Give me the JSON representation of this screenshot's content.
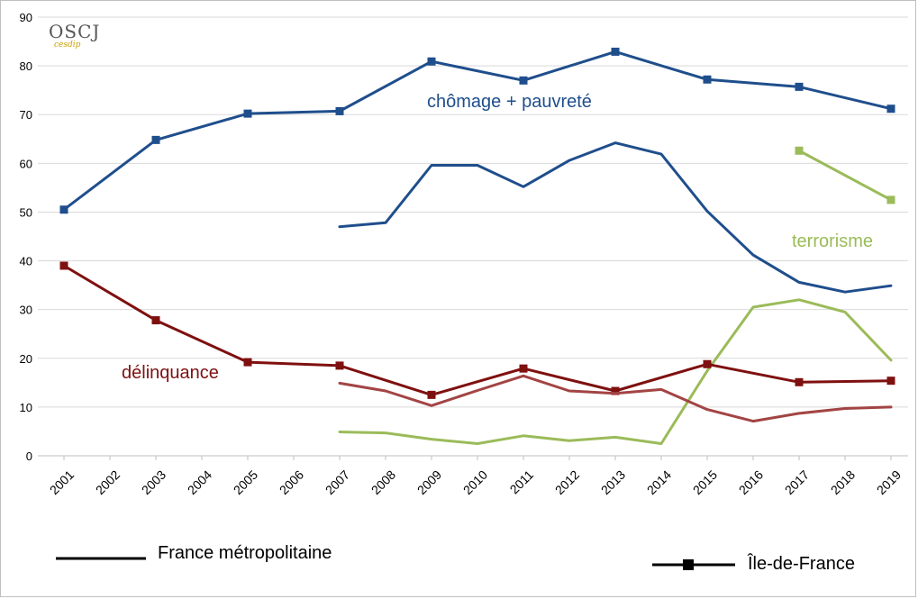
{
  "logo": {
    "main": "OSCJ",
    "sub": "cesdip"
  },
  "chart_data": {
    "type": "line",
    "x": [
      "2001",
      "2002",
      "2003",
      "2004",
      "2005",
      "2006",
      "2007",
      "2008",
      "2009",
      "2010",
      "2011",
      "2012",
      "2013",
      "2014",
      "2015",
      "2016",
      "2017",
      "2018",
      "2019"
    ],
    "ylim": [
      0,
      90
    ],
    "yticks": [
      0,
      10,
      20,
      30,
      40,
      50,
      60,
      70,
      80,
      90
    ],
    "grid": true,
    "series": [
      {
        "name": "chômage + pauvreté",
        "region": "Île-de-France",
        "color": "#1f4e8c",
        "markers": true,
        "values": [
          50.5,
          null,
          64.8,
          null,
          70.2,
          null,
          70.7,
          null,
          80.9,
          null,
          77.0,
          null,
          82.9,
          null,
          77.2,
          null,
          75.7,
          null,
          71.2
        ]
      },
      {
        "name": "chômage + pauvreté",
        "region": "France métropolitaine",
        "color": "#1f4e8c",
        "markers": false,
        "values": [
          null,
          null,
          null,
          null,
          null,
          null,
          47.0,
          47.8,
          59.6,
          59.6,
          55.2,
          60.6,
          64.2,
          61.9,
          50.2,
          41.2,
          35.6,
          33.6,
          34.9
        ]
      },
      {
        "name": "terrorisme",
        "region": "Île-de-France",
        "color": "#9bbb59",
        "markers": true,
        "values": [
          null,
          null,
          null,
          null,
          null,
          null,
          null,
          null,
          null,
          null,
          null,
          null,
          null,
          null,
          null,
          null,
          62.6,
          null,
          52.5
        ]
      },
      {
        "name": "terrorisme",
        "region": "France métropolitaine",
        "color": "#9bbb59",
        "markers": false,
        "values": [
          null,
          null,
          null,
          null,
          null,
          null,
          4.9,
          4.7,
          3.4,
          2.5,
          4.1,
          3.1,
          3.8,
          2.5,
          17.4,
          30.5,
          32.0,
          29.5,
          19.6
        ]
      },
      {
        "name": "délinquance",
        "region": "Île-de-France",
        "color": "#7f1010",
        "markers": true,
        "values": [
          39.0,
          null,
          27.8,
          null,
          19.2,
          null,
          18.5,
          null,
          12.5,
          null,
          17.9,
          null,
          13.3,
          null,
          18.8,
          null,
          15.1,
          null,
          15.4
        ]
      },
      {
        "name": "délinquance",
        "region": "France métropolitaine",
        "color": "#a34444",
        "markers": false,
        "values": [
          null,
          null,
          null,
          null,
          null,
          null,
          14.9,
          13.3,
          10.3,
          13.4,
          16.4,
          13.3,
          12.8,
          13.6,
          9.5,
          7.1,
          8.7,
          9.7,
          10.0
        ]
      }
    ],
    "annotations": {
      "chomage": "chômage + pauvreté",
      "terrorisme": "terrorisme",
      "delinquance": "délinquance"
    },
    "legend": {
      "placement": "bottom",
      "line_only": "France métropolitaine",
      "line_marker": "Île-de-France"
    }
  }
}
